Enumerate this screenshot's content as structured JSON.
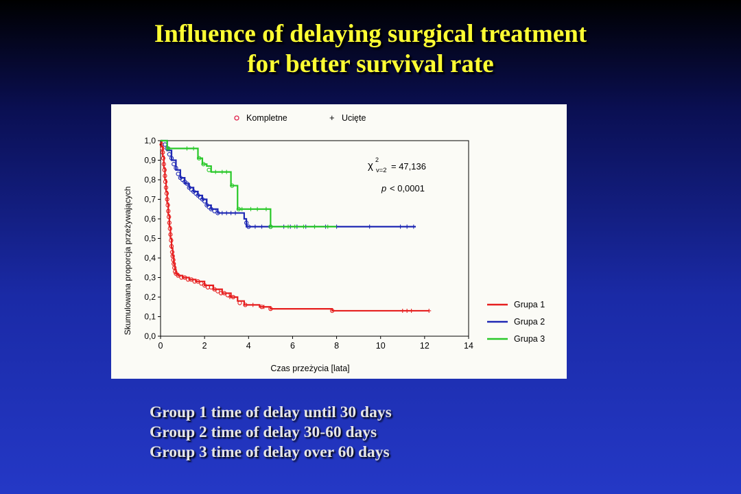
{
  "slide": {
    "title_lines": [
      "Influence of delaying surgical treatment",
      "for better survival rate"
    ],
    "notes": [
      "Group 1 time of delay until 30 days",
      "Group 2 time of delay 30-60 days",
      "Group 3 time of delay over 60 days"
    ],
    "background_color": "#1a2aa6",
    "title_color": "#ffff33"
  },
  "chart_data": {
    "type": "line",
    "xlabel": "Czas przeżycia [lata]",
    "ylabel": "Skumulowana proporcja przeżywających",
    "xlim": [
      0,
      14
    ],
    "ylim": [
      0,
      1
    ],
    "xticks": [
      0,
      2,
      4,
      6,
      8,
      10,
      12,
      14
    ],
    "xtick_labels": [
      "0",
      "2",
      "4",
      "6",
      "8",
      "10",
      "12",
      "14"
    ],
    "yticks": [
      0,
      0.1,
      0.2,
      0.3,
      0.4,
      0.5,
      0.6,
      0.7,
      0.8,
      0.9,
      1.0
    ],
    "ytick_labels": [
      "0,0",
      "0,1",
      "0,2",
      "0,3",
      "0,4",
      "0,5",
      "0,6",
      "0,7",
      "0,8",
      "0,9",
      "1,0"
    ],
    "grid": false,
    "marker_legend": {
      "placement": "top",
      "items": [
        {
          "label": "Kompletne",
          "symbol": "circle",
          "color": "#e0204a"
        },
        {
          "label": "Ucięte",
          "symbol": "plus",
          "color": "#e0204a"
        }
      ]
    },
    "legend_placement": "right",
    "annotation": {
      "chi_text": "χ",
      "chi_sup": "2",
      "chi_sub": "v=2",
      "chi_value": "= 47,136",
      "p_label": "p",
      "p_value": "< 0,0001"
    },
    "series": [
      {
        "name": "Grupa 1",
        "color": "#e61e1e",
        "points": [
          [
            0,
            1.0
          ],
          [
            0.05,
            0.97
          ],
          [
            0.1,
            0.92
          ],
          [
            0.15,
            0.86
          ],
          [
            0.2,
            0.8
          ],
          [
            0.25,
            0.74
          ],
          [
            0.3,
            0.68
          ],
          [
            0.35,
            0.62
          ],
          [
            0.4,
            0.56
          ],
          [
            0.45,
            0.5
          ],
          [
            0.5,
            0.45
          ],
          [
            0.55,
            0.41
          ],
          [
            0.6,
            0.37
          ],
          [
            0.65,
            0.34
          ],
          [
            0.7,
            0.32
          ],
          [
            0.8,
            0.31
          ],
          [
            1.0,
            0.3
          ],
          [
            1.3,
            0.29
          ],
          [
            1.6,
            0.28
          ],
          [
            2.0,
            0.26
          ],
          [
            2.4,
            0.24
          ],
          [
            2.8,
            0.22
          ],
          [
            3.2,
            0.2
          ],
          [
            3.5,
            0.18
          ],
          [
            3.8,
            0.16
          ],
          [
            4.5,
            0.15
          ],
          [
            5.0,
            0.14
          ],
          [
            6.0,
            0.14
          ],
          [
            7.0,
            0.14
          ],
          [
            7.8,
            0.13
          ],
          [
            9.0,
            0.13
          ],
          [
            10.0,
            0.13
          ],
          [
            11.0,
            0.13
          ],
          [
            12.2,
            0.13
          ]
        ],
        "complete_marks": [
          [
            0.05,
            0.98
          ],
          [
            0.08,
            0.96
          ],
          [
            0.1,
            0.94
          ],
          [
            0.12,
            0.91
          ],
          [
            0.15,
            0.88
          ],
          [
            0.18,
            0.85
          ],
          [
            0.2,
            0.82
          ],
          [
            0.22,
            0.79
          ],
          [
            0.25,
            0.76
          ],
          [
            0.28,
            0.73
          ],
          [
            0.3,
            0.7
          ],
          [
            0.33,
            0.67
          ],
          [
            0.35,
            0.64
          ],
          [
            0.38,
            0.61
          ],
          [
            0.4,
            0.58
          ],
          [
            0.43,
            0.55
          ],
          [
            0.45,
            0.52
          ],
          [
            0.48,
            0.49
          ],
          [
            0.5,
            0.46
          ],
          [
            0.53,
            0.43
          ],
          [
            0.55,
            0.41
          ],
          [
            0.58,
            0.39
          ],
          [
            0.6,
            0.37
          ],
          [
            0.63,
            0.35
          ],
          [
            0.66,
            0.33
          ],
          [
            0.7,
            0.32
          ],
          [
            0.8,
            0.31
          ],
          [
            0.95,
            0.3
          ],
          [
            1.1,
            0.3
          ],
          [
            1.25,
            0.29
          ],
          [
            1.4,
            0.29
          ],
          [
            1.55,
            0.28
          ],
          [
            1.7,
            0.28
          ],
          [
            1.85,
            0.27
          ],
          [
            2.0,
            0.26
          ],
          [
            2.15,
            0.25
          ],
          [
            2.3,
            0.25
          ],
          [
            2.45,
            0.24
          ],
          [
            2.6,
            0.23
          ],
          [
            2.75,
            0.22
          ],
          [
            2.9,
            0.22
          ],
          [
            3.05,
            0.21
          ],
          [
            3.3,
            0.2
          ],
          [
            3.6,
            0.17
          ],
          [
            3.85,
            0.16
          ],
          [
            4.6,
            0.15
          ],
          [
            5.0,
            0.14
          ],
          [
            7.8,
            0.13
          ]
        ],
        "censored_marks": [
          [
            3.15,
            0.2
          ],
          [
            4.2,
            0.16
          ],
          [
            4.7,
            0.15
          ],
          [
            11.0,
            0.13
          ],
          [
            11.2,
            0.13
          ],
          [
            11.4,
            0.13
          ],
          [
            12.2,
            0.13
          ]
        ]
      },
      {
        "name": "Grupa 2",
        "color": "#1e28b4",
        "points": [
          [
            0,
            1.0
          ],
          [
            0.3,
            0.95
          ],
          [
            0.5,
            0.9
          ],
          [
            0.7,
            0.85
          ],
          [
            0.9,
            0.81
          ],
          [
            1.1,
            0.78
          ],
          [
            1.3,
            0.76
          ],
          [
            1.5,
            0.74
          ],
          [
            1.7,
            0.72
          ],
          [
            1.9,
            0.7
          ],
          [
            2.1,
            0.67
          ],
          [
            2.3,
            0.65
          ],
          [
            2.6,
            0.63
          ],
          [
            3.0,
            0.63
          ],
          [
            3.6,
            0.63
          ],
          [
            3.8,
            0.6
          ],
          [
            3.9,
            0.56
          ],
          [
            5.0,
            0.56
          ],
          [
            7.0,
            0.56
          ],
          [
            9.0,
            0.56
          ],
          [
            10.0,
            0.56
          ],
          [
            11.6,
            0.56
          ]
        ],
        "complete_marks": [
          [
            0.2,
            0.98
          ],
          [
            0.3,
            0.96
          ],
          [
            0.4,
            0.93
          ],
          [
            0.5,
            0.91
          ],
          [
            0.6,
            0.88
          ],
          [
            0.7,
            0.86
          ],
          [
            0.8,
            0.83
          ],
          [
            0.9,
            0.81
          ],
          [
            1.0,
            0.8
          ],
          [
            1.1,
            0.79
          ],
          [
            1.2,
            0.78
          ],
          [
            1.3,
            0.76
          ],
          [
            1.4,
            0.75
          ],
          [
            1.5,
            0.74
          ],
          [
            1.6,
            0.73
          ],
          [
            1.7,
            0.72
          ],
          [
            1.8,
            0.71
          ],
          [
            1.9,
            0.7
          ],
          [
            2.0,
            0.69
          ],
          [
            2.1,
            0.67
          ],
          [
            2.2,
            0.66
          ],
          [
            2.3,
            0.65
          ],
          [
            2.45,
            0.64
          ],
          [
            2.6,
            0.63
          ],
          [
            3.9,
            0.58
          ],
          [
            4.0,
            0.56
          ],
          [
            5.0,
            0.56
          ]
        ],
        "censored_marks": [
          [
            2.8,
            0.63
          ],
          [
            3.0,
            0.63
          ],
          [
            3.2,
            0.63
          ],
          [
            3.4,
            0.63
          ],
          [
            4.3,
            0.56
          ],
          [
            4.6,
            0.56
          ],
          [
            5.6,
            0.56
          ],
          [
            5.9,
            0.56
          ],
          [
            6.2,
            0.56
          ],
          [
            6.6,
            0.56
          ],
          [
            7.0,
            0.56
          ],
          [
            7.5,
            0.56
          ],
          [
            8.0,
            0.56
          ],
          [
            9.5,
            0.56
          ],
          [
            10.9,
            0.56
          ],
          [
            11.2,
            0.56
          ],
          [
            11.5,
            0.56
          ]
        ]
      },
      {
        "name": "Grupa 3",
        "color": "#28c828",
        "points": [
          [
            0,
            1.0
          ],
          [
            0.3,
            0.96
          ],
          [
            1.0,
            0.96
          ],
          [
            1.65,
            0.96
          ],
          [
            1.7,
            0.91
          ],
          [
            1.9,
            0.88
          ],
          [
            2.1,
            0.87
          ],
          [
            2.3,
            0.84
          ],
          [
            2.8,
            0.84
          ],
          [
            3.1,
            0.84
          ],
          [
            3.2,
            0.77
          ],
          [
            3.4,
            0.77
          ],
          [
            3.5,
            0.65
          ],
          [
            4.0,
            0.65
          ],
          [
            4.5,
            0.65
          ],
          [
            4.9,
            0.65
          ],
          [
            5.0,
            0.56
          ],
          [
            6.0,
            0.56
          ],
          [
            7.0,
            0.56
          ],
          [
            8.0,
            0.56
          ]
        ],
        "complete_marks": [
          [
            0.35,
            0.96
          ],
          [
            1.75,
            0.91
          ],
          [
            1.95,
            0.88
          ],
          [
            2.2,
            0.85
          ],
          [
            3.25,
            0.77
          ],
          [
            3.55,
            0.65
          ],
          [
            5.0,
            0.56
          ]
        ],
        "censored_marks": [
          [
            1.2,
            0.96
          ],
          [
            1.5,
            0.96
          ],
          [
            2.5,
            0.84
          ],
          [
            2.8,
            0.84
          ],
          [
            3.0,
            0.84
          ],
          [
            3.7,
            0.65
          ],
          [
            4.1,
            0.65
          ],
          [
            4.4,
            0.65
          ],
          [
            4.8,
            0.65
          ],
          [
            5.8,
            0.56
          ],
          [
            6.1,
            0.56
          ],
          [
            6.5,
            0.56
          ],
          [
            7.0,
            0.56
          ],
          [
            7.6,
            0.56
          ]
        ]
      }
    ]
  }
}
